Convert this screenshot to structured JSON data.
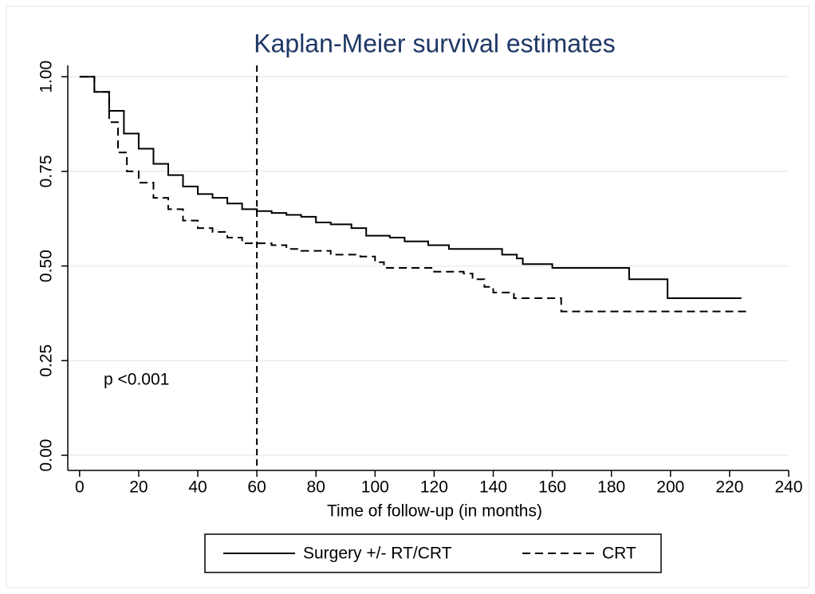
{
  "chart_data": {
    "type": "step",
    "title": "Kaplan-Meier survival estimates",
    "x_label": "Time of follow-up (in months)",
    "annotation": "p <0.001",
    "reference_x": 60,
    "xlim": [
      -4,
      240
    ],
    "ylim": [
      -0.04,
      1.03
    ],
    "xticks": [
      0,
      20,
      40,
      60,
      80,
      100,
      120,
      140,
      160,
      180,
      200,
      220,
      240
    ],
    "yticks": [
      {
        "value": 0,
        "label": "0.00"
      },
      {
        "value": 0.25,
        "label": "0.25"
      },
      {
        "value": 0.5,
        "label": "0.50"
      },
      {
        "value": 0.75,
        "label": "0.75"
      },
      {
        "value": 1,
        "label": "1.00"
      }
    ],
    "grid": true,
    "series": [
      {
        "name": "Surgery +/- RT/CRT",
        "color": "#000000",
        "dash": "solid",
        "x": [
          0,
          5,
          10,
          15,
          20,
          25,
          30,
          35,
          40,
          45,
          50,
          55,
          60,
          65,
          70,
          75,
          80,
          85,
          92,
          97,
          105,
          110,
          118,
          125,
          143,
          148,
          150,
          160,
          186,
          199,
          224
        ],
        "values": [
          1.0,
          0.96,
          0.91,
          0.85,
          0.81,
          0.77,
          0.74,
          0.71,
          0.69,
          0.68,
          0.665,
          0.65,
          0.645,
          0.64,
          0.635,
          0.63,
          0.615,
          0.61,
          0.6,
          0.58,
          0.575,
          0.565,
          0.555,
          0.545,
          0.53,
          0.52,
          0.505,
          0.495,
          0.465,
          0.415,
          0.415
        ]
      },
      {
        "name": "CRT",
        "color": "#000000",
        "dash": "dashed",
        "x": [
          0,
          5,
          10,
          13,
          16,
          20,
          25,
          30,
          35,
          40,
          45,
          50,
          55,
          65,
          70,
          75,
          85,
          95,
          100,
          103,
          120,
          130,
          133,
          137,
          140,
          147,
          163,
          226
        ],
        "values": [
          1.0,
          0.96,
          0.88,
          0.8,
          0.75,
          0.72,
          0.68,
          0.65,
          0.62,
          0.6,
          0.59,
          0.575,
          0.56,
          0.555,
          0.545,
          0.54,
          0.53,
          0.525,
          0.51,
          0.495,
          0.485,
          0.48,
          0.465,
          0.445,
          0.43,
          0.415,
          0.38,
          0.38
        ]
      }
    ]
  }
}
